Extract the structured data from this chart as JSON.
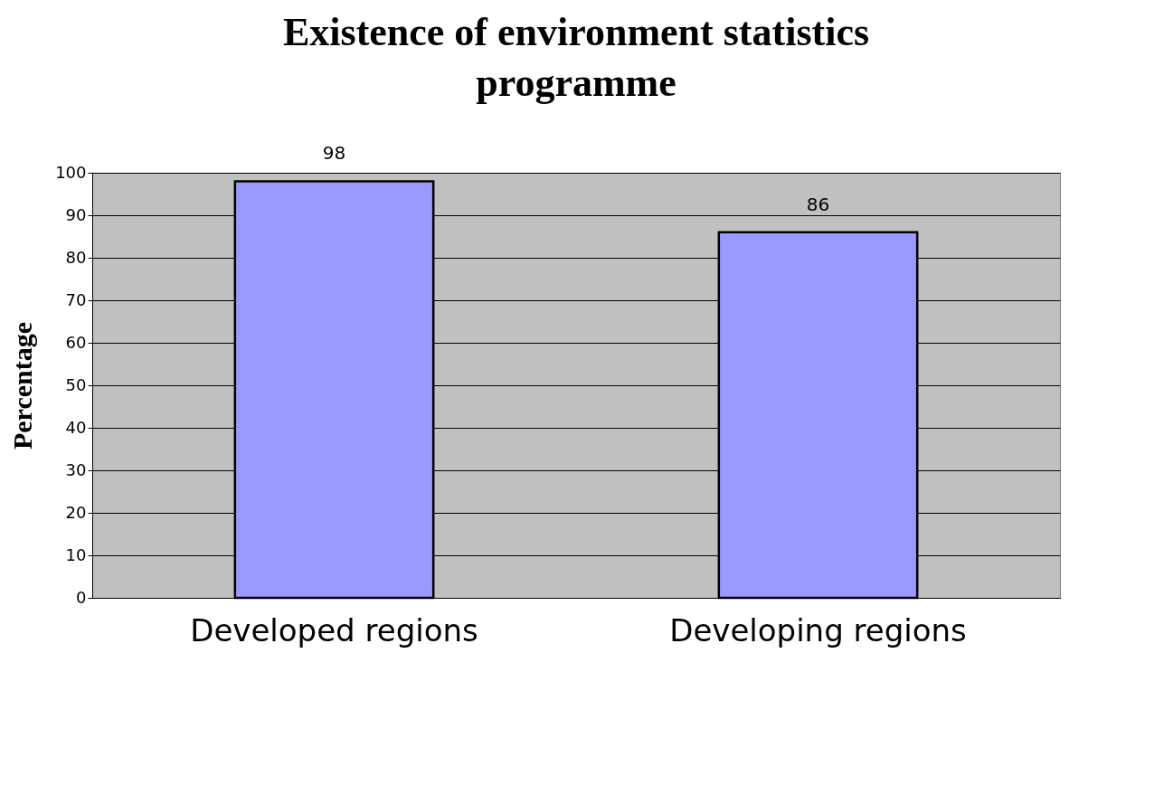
{
  "chart_data": {
    "type": "bar",
    "title": "Existence of environment statistics programme",
    "ylabel": "Percentage",
    "categories": [
      "Developed regions",
      "Developing regions"
    ],
    "values": [
      98,
      86
    ],
    "color": "#9999ff",
    "ylim": [
      0,
      100
    ],
    "yticks": [
      0,
      10,
      20,
      30,
      40,
      50,
      60,
      70,
      80,
      90,
      100
    ],
    "grid": "y",
    "data_labels": true
  }
}
